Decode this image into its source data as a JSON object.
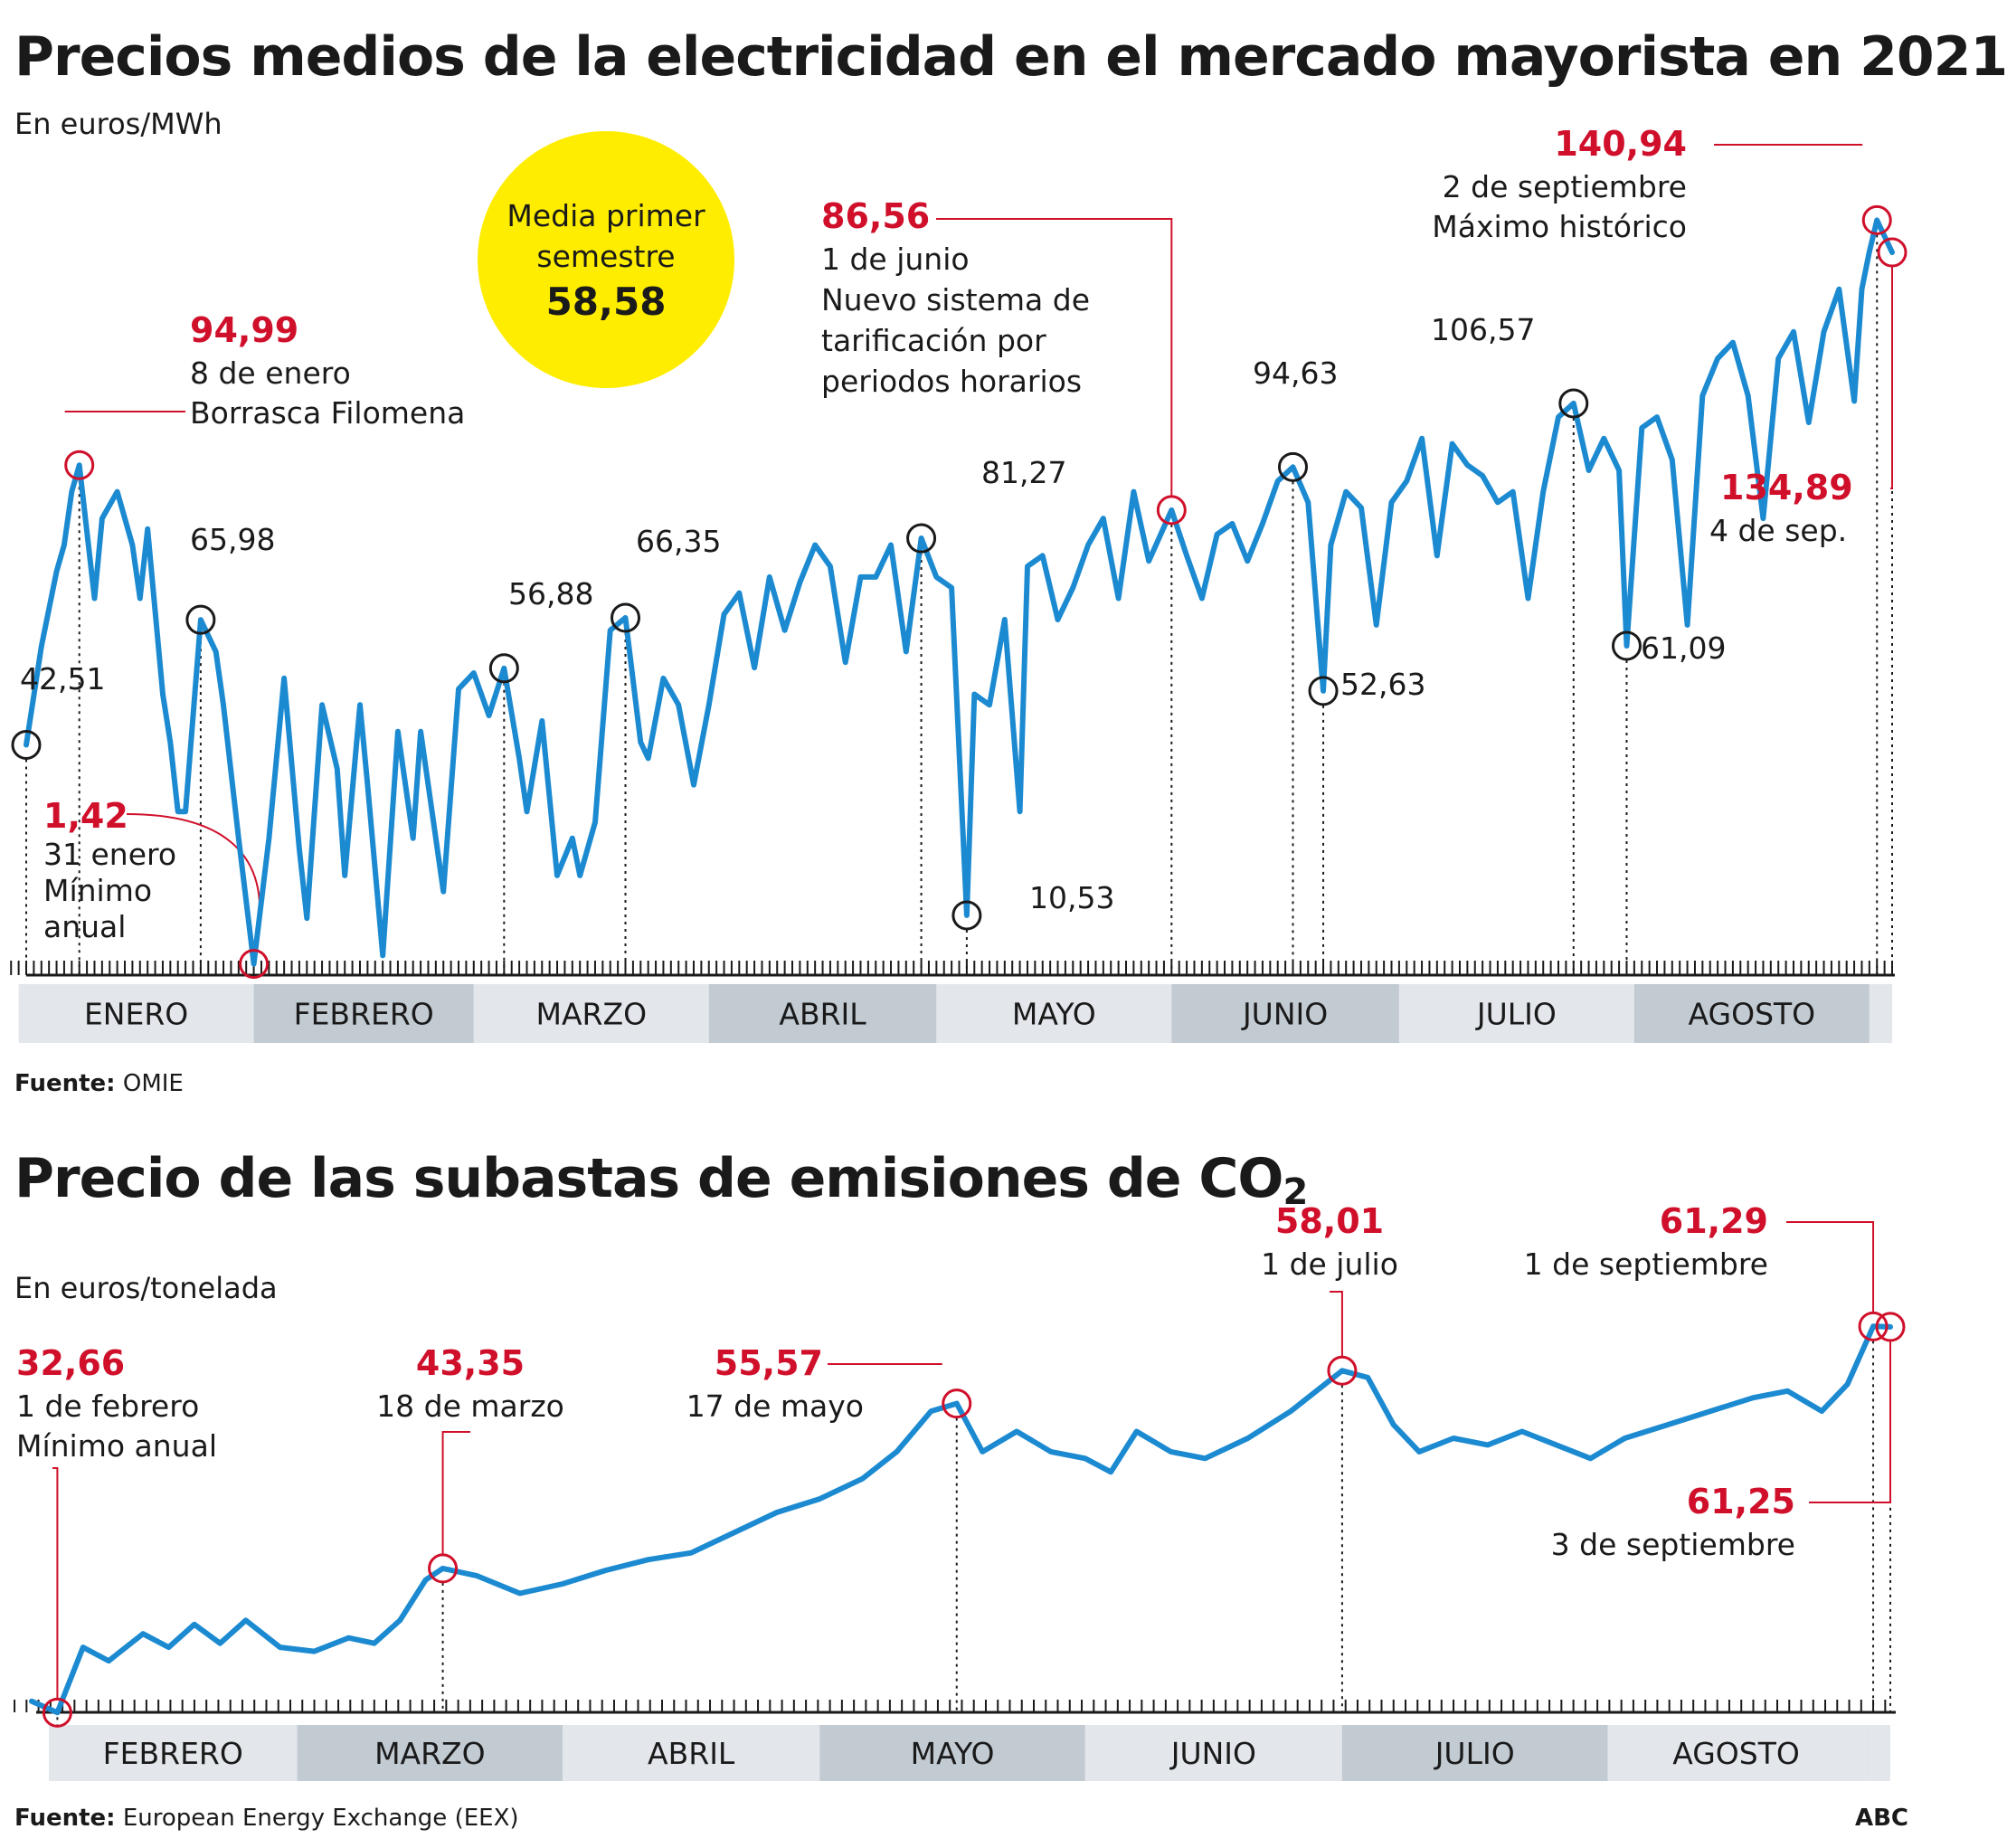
{
  "chart1": {
    "title": "Precios medios de la electricidad en el mercado mayorista en 2021",
    "unit": "En euros/MWh",
    "source_label": "Fuente:",
    "source_value": "OMIE",
    "bubble": {
      "line1": "Media primer",
      "line2": "semestre",
      "value": "58,58"
    },
    "months": [
      "ENERO",
      "FEBRERO",
      "MARZO",
      "ABRIL",
      "MAYO",
      "JUNIO",
      "JULIO",
      "AGOSTO"
    ],
    "red_annotations": [
      {
        "value": "94,99",
        "lines": [
          "8 de enero",
          "Borrasca Filomena"
        ]
      },
      {
        "value": "1,42",
        "lines": [
          "31 enero",
          "Mínimo",
          "anual"
        ]
      },
      {
        "value": "86,56",
        "lines": [
          "1 de junio",
          "Nuevo sistema de",
          "tarificación por",
          "periodos horarios"
        ]
      },
      {
        "value": "140,94",
        "lines": [
          "2 de septiembre",
          "Máximo histórico"
        ]
      },
      {
        "value": "134,89",
        "lines": [
          "4 de sep."
        ]
      }
    ],
    "black_labels": [
      "42,51",
      "65,98",
      "56,88",
      "66,35",
      "81,27",
      "10,53",
      "94,63",
      "52,63",
      "106,57",
      "61,09"
    ]
  },
  "chart2": {
    "title": "Precio de las subastas de emisiones de CO",
    "title_sub": "2",
    "unit": "En euros/tonelada",
    "source_label": "Fuente:",
    "source_value": "European Energy Exchange (EEX)",
    "brand": "ABC",
    "months": [
      "FEBRERO",
      "MARZO",
      "ABRIL",
      "MAYO",
      "JUNIO",
      "JULIO",
      "AGOSTO"
    ],
    "red_annotations": [
      {
        "value": "32,66",
        "lines": [
          "1 de febrero",
          "Mínimo anual"
        ]
      },
      {
        "value": "43,35",
        "lines": [
          "18 de marzo"
        ]
      },
      {
        "value": "55,57",
        "lines": [
          "17 de mayo"
        ]
      },
      {
        "value": "58,01",
        "lines": [
          "1 de julio"
        ]
      },
      {
        "value": "61,29",
        "lines": [
          "1 de septiembre"
        ]
      },
      {
        "value": "61,25",
        "lines": [
          "3 de septiembre"
        ]
      }
    ]
  },
  "chart_data": [
    {
      "type": "line",
      "title": "Precios medios de la electricidad en el mercado mayorista en 2021",
      "ylabel": "En euros/MWh",
      "x_range": [
        "2021-01-01",
        "2021-09-04"
      ],
      "y_range": [
        0,
        150
      ],
      "line_color": "#1c8ad1",
      "points": [
        [
          "2021-01-01",
          42.51
        ],
        [
          "2021-01-03",
          61
        ],
        [
          "2021-01-05",
          75
        ],
        [
          "2021-01-06",
          80
        ],
        [
          "2021-01-07",
          90
        ],
        [
          "2021-01-08",
          94.99
        ],
        [
          "2021-01-10",
          70
        ],
        [
          "2021-01-11",
          85
        ],
        [
          "2021-01-13",
          90
        ],
        [
          "2021-01-15",
          80
        ],
        [
          "2021-01-16",
          70
        ],
        [
          "2021-01-17",
          83
        ],
        [
          "2021-01-19",
          52
        ],
        [
          "2021-01-20",
          43
        ],
        [
          "2021-01-21",
          30
        ],
        [
          "2021-01-22",
          30
        ],
        [
          "2021-01-24",
          65.98
        ],
        [
          "2021-01-26",
          60
        ],
        [
          "2021-01-27",
          50
        ],
        [
          "2021-01-29",
          25
        ],
        [
          "2021-01-31",
          1.42
        ],
        [
          "2021-02-02",
          25
        ],
        [
          "2021-02-04",
          55
        ],
        [
          "2021-02-06",
          23
        ],
        [
          "2021-02-07",
          10
        ],
        [
          "2021-02-09",
          50
        ],
        [
          "2021-02-11",
          38
        ],
        [
          "2021-02-12",
          18
        ],
        [
          "2021-02-14",
          50
        ],
        [
          "2021-02-15",
          35
        ],
        [
          "2021-02-17",
          3
        ],
        [
          "2021-02-19",
          45
        ],
        [
          "2021-02-21",
          25
        ],
        [
          "2021-02-22",
          45
        ],
        [
          "2021-02-25",
          15
        ],
        [
          "2021-02-27",
          53
        ],
        [
          "2021-03-01",
          56
        ],
        [
          "2021-03-03",
          48
        ],
        [
          "2021-03-05",
          56.88
        ],
        [
          "2021-03-07",
          40
        ],
        [
          "2021-03-08",
          30
        ],
        [
          "2021-03-10",
          47
        ],
        [
          "2021-03-12",
          18
        ],
        [
          "2021-03-14",
          25
        ],
        [
          "2021-03-15",
          18
        ],
        [
          "2021-03-17",
          28
        ],
        [
          "2021-03-19",
          64
        ],
        [
          "2021-03-21",
          66.35
        ],
        [
          "2021-03-23",
          43
        ],
        [
          "2021-03-24",
          40
        ],
        [
          "2021-03-26",
          55
        ],
        [
          "2021-03-28",
          50
        ],
        [
          "2021-03-30",
          35
        ],
        [
          "2021-04-01",
          50
        ],
        [
          "2021-04-03",
          67
        ],
        [
          "2021-04-05",
          71
        ],
        [
          "2021-04-07",
          57
        ],
        [
          "2021-04-09",
          74
        ],
        [
          "2021-04-11",
          64
        ],
        [
          "2021-04-13",
          73
        ],
        [
          "2021-04-15",
          80
        ],
        [
          "2021-04-17",
          76
        ],
        [
          "2021-04-19",
          58
        ],
        [
          "2021-04-21",
          74
        ],
        [
          "2021-04-23",
          74
        ],
        [
          "2021-04-25",
          80
        ],
        [
          "2021-04-27",
          60
        ],
        [
          "2021-04-29",
          81.27
        ],
        [
          "2021-05-01",
          74
        ],
        [
          "2021-05-03",
          72
        ],
        [
          "2021-05-05",
          10.53
        ],
        [
          "2021-05-06",
          52
        ],
        [
          "2021-05-08",
          50
        ],
        [
          "2021-05-10",
          66
        ],
        [
          "2021-05-12",
          30
        ],
        [
          "2021-05-13",
          76
        ],
        [
          "2021-05-15",
          78
        ],
        [
          "2021-05-17",
          66
        ],
        [
          "2021-05-19",
          72
        ],
        [
          "2021-05-21",
          80
        ],
        [
          "2021-05-23",
          85
        ],
        [
          "2021-05-25",
          70
        ],
        [
          "2021-05-27",
          90
        ],
        [
          "2021-05-29",
          77
        ],
        [
          "2021-06-01",
          86.56
        ],
        [
          "2021-06-03",
          78
        ],
        [
          "2021-06-05",
          70
        ],
        [
          "2021-06-07",
          82
        ],
        [
          "2021-06-09",
          84
        ],
        [
          "2021-06-11",
          77
        ],
        [
          "2021-06-13",
          84
        ],
        [
          "2021-06-15",
          92
        ],
        [
          "2021-06-17",
          94.63
        ],
        [
          "2021-06-19",
          88
        ],
        [
          "2021-06-21",
          52.63
        ],
        [
          "2021-06-22",
          80
        ],
        [
          "2021-06-24",
          90
        ],
        [
          "2021-06-26",
          87
        ],
        [
          "2021-06-28",
          65
        ],
        [
          "2021-06-30",
          88
        ],
        [
          "2021-07-02",
          92
        ],
        [
          "2021-07-04",
          100
        ],
        [
          "2021-07-06",
          78
        ],
        [
          "2021-07-08",
          99
        ],
        [
          "2021-07-10",
          95
        ],
        [
          "2021-07-12",
          93
        ],
        [
          "2021-07-14",
          88
        ],
        [
          "2021-07-16",
          90
        ],
        [
          "2021-07-18",
          70
        ],
        [
          "2021-07-20",
          90
        ],
        [
          "2021-07-22",
          104
        ],
        [
          "2021-07-24",
          106.57
        ],
        [
          "2021-07-26",
          94
        ],
        [
          "2021-07-28",
          100
        ],
        [
          "2021-07-30",
          94
        ],
        [
          "2021-07-31",
          61.09
        ],
        [
          "2021-08-02",
          102
        ],
        [
          "2021-08-04",
          104
        ],
        [
          "2021-08-06",
          96
        ],
        [
          "2021-08-08",
          65
        ],
        [
          "2021-08-10",
          108
        ],
        [
          "2021-08-12",
          115
        ],
        [
          "2021-08-14",
          118
        ],
        [
          "2021-08-16",
          108
        ],
        [
          "2021-08-18",
          85
        ],
        [
          "2021-08-20",
          115
        ],
        [
          "2021-08-22",
          120
        ],
        [
          "2021-08-24",
          103
        ],
        [
          "2021-08-26",
          120
        ],
        [
          "2021-08-28",
          128
        ],
        [
          "2021-08-30",
          107
        ],
        [
          "2021-08-31",
          128
        ],
        [
          "2021-09-01",
          135
        ],
        [
          "2021-09-02",
          140.94
        ],
        [
          "2021-09-04",
          134.89
        ]
      ],
      "labeled_points": [
        {
          "date": "2021-01-01",
          "value": 42.51
        },
        {
          "date": "2021-01-08",
          "value": 94.99
        },
        {
          "date": "2021-01-24",
          "value": 65.98
        },
        {
          "date": "2021-01-31",
          "value": 1.42
        },
        {
          "date": "2021-03-05",
          "value": 56.88
        },
        {
          "date": "2021-03-21",
          "value": 66.35
        },
        {
          "date": "2021-04-29",
          "value": 81.27
        },
        {
          "date": "2021-05-05",
          "value": 10.53
        },
        {
          "date": "2021-06-01",
          "value": 86.56
        },
        {
          "date": "2021-06-17",
          "value": 94.63
        },
        {
          "date": "2021-06-21",
          "value": 52.63
        },
        {
          "date": "2021-07-24",
          "value": 106.57
        },
        {
          "date": "2021-07-31",
          "value": 61.09
        },
        {
          "date": "2021-09-02",
          "value": 140.94
        },
        {
          "date": "2021-09-04",
          "value": 134.89
        }
      ]
    },
    {
      "type": "line",
      "title": "Precio de las subastas de emisiones de CO2",
      "ylabel": "En euros/tonelada",
      "x_range": [
        "2021-01-29",
        "2021-09-03"
      ],
      "y_range": [
        30,
        65
      ],
      "line_color": "#1c8ad1",
      "points": [
        [
          "2021-01-29",
          33.5
        ],
        [
          "2021-02-01",
          32.66
        ],
        [
          "2021-02-04",
          37.5
        ],
        [
          "2021-02-07",
          36.5
        ],
        [
          "2021-02-11",
          38.5
        ],
        [
          "2021-02-14",
          37.5
        ],
        [
          "2021-02-17",
          39.2
        ],
        [
          "2021-02-20",
          37.8
        ],
        [
          "2021-02-23",
          39.5
        ],
        [
          "2021-02-27",
          37.5
        ],
        [
          "2021-03-03",
          37.2
        ],
        [
          "2021-03-07",
          38.2
        ],
        [
          "2021-03-10",
          37.8
        ],
        [
          "2021-03-13",
          39.5
        ],
        [
          "2021-03-16",
          42.5
        ],
        [
          "2021-03-18",
          43.35
        ],
        [
          "2021-03-22",
          42.8
        ],
        [
          "2021-03-27",
          41.5
        ],
        [
          "2021-04-01",
          42.2
        ],
        [
          "2021-04-06",
          43.2
        ],
        [
          "2021-04-11",
          44.0
        ],
        [
          "2021-04-16",
          44.5
        ],
        [
          "2021-04-21",
          46.0
        ],
        [
          "2021-04-26",
          47.5
        ],
        [
          "2021-05-01",
          48.5
        ],
        [
          "2021-05-06",
          50.0
        ],
        [
          "2021-05-10",
          52.0
        ],
        [
          "2021-05-14",
          55.0
        ],
        [
          "2021-05-17",
          55.57
        ],
        [
          "2021-05-20",
          52.0
        ],
        [
          "2021-05-24",
          53.5
        ],
        [
          "2021-05-28",
          52.0
        ],
        [
          "2021-06-01",
          51.5
        ],
        [
          "2021-06-04",
          50.5
        ],
        [
          "2021-06-07",
          53.5
        ],
        [
          "2021-06-11",
          52.0
        ],
        [
          "2021-06-15",
          51.5
        ],
        [
          "2021-06-20",
          53.0
        ],
        [
          "2021-06-25",
          55.0
        ],
        [
          "2021-07-01",
          58.01
        ],
        [
          "2021-07-04",
          57.5
        ],
        [
          "2021-07-07",
          54.0
        ],
        [
          "2021-07-10",
          52.0
        ],
        [
          "2021-07-14",
          53.0
        ],
        [
          "2021-07-18",
          52.5
        ],
        [
          "2021-07-22",
          53.5
        ],
        [
          "2021-07-26",
          52.5
        ],
        [
          "2021-07-30",
          51.5
        ],
        [
          "2021-08-03",
          53.0
        ],
        [
          "2021-08-08",
          54.0
        ],
        [
          "2021-08-13",
          55.0
        ],
        [
          "2021-08-18",
          56.0
        ],
        [
          "2021-08-22",
          56.5
        ],
        [
          "2021-08-26",
          55.0
        ],
        [
          "2021-08-29",
          57.0
        ],
        [
          "2021-09-01",
          61.29
        ],
        [
          "2021-09-03",
          61.25
        ]
      ],
      "labeled_points": [
        {
          "date": "2021-02-01",
          "value": 32.66
        },
        {
          "date": "2021-03-18",
          "value": 43.35
        },
        {
          "date": "2021-05-17",
          "value": 55.57
        },
        {
          "date": "2021-07-01",
          "value": 58.01
        },
        {
          "date": "2021-09-01",
          "value": 61.29
        },
        {
          "date": "2021-09-03",
          "value": 61.25
        }
      ]
    }
  ],
  "colors": {
    "line": "#1c8ad1",
    "accent": "#d0102b",
    "band_light": "#e3e7ec",
    "band_dark": "#c2cad2",
    "bubble": "#ffed00"
  }
}
